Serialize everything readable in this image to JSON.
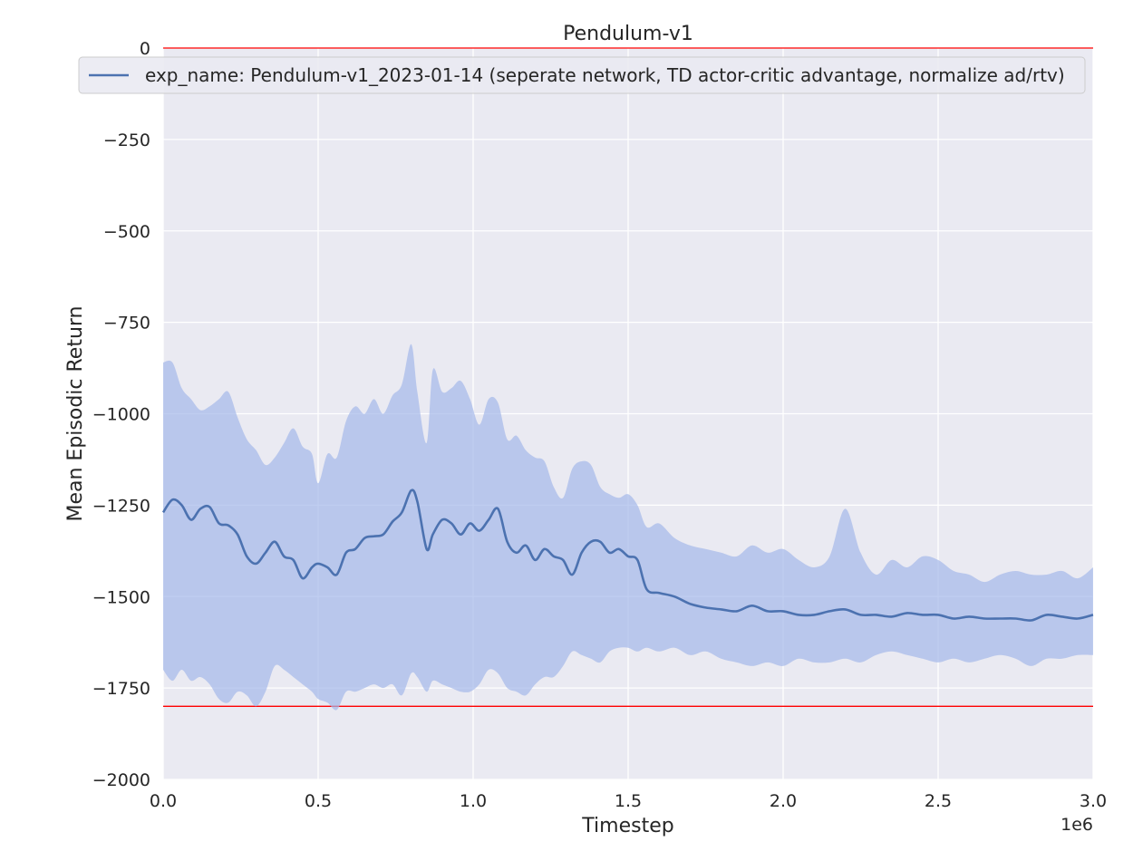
{
  "chart_data": {
    "type": "line",
    "title": "Pendulum-v1",
    "xlabel": "Timestep",
    "ylabel": "Mean Episodic Return",
    "x_offset_label": "1e6",
    "xlim": [
      0,
      3000000
    ],
    "ylim": [
      -2000,
      0
    ],
    "x_ticks": [
      0,
      500000,
      1000000,
      1500000,
      2000000,
      2500000,
      3000000
    ],
    "x_tick_labels": [
      "0.0",
      "0.5",
      "1.0",
      "1.5",
      "2.0",
      "2.5",
      "3.0"
    ],
    "y_ticks": [
      0,
      -250,
      -500,
      -750,
      -1000,
      -1250,
      -1500,
      -1750,
      -2000
    ],
    "y_tick_labels": [
      "0",
      "−250",
      "−500",
      "−750",
      "−1000",
      "−1250",
      "−1500",
      "−1750",
      "−2000"
    ],
    "grid": true,
    "legend_position": "top-center",
    "colors": {
      "background": "#eaeaf2",
      "grid": "#ffffff",
      "line": "#4c72b0",
      "band": "#a4b8ea",
      "reference": "#ff0000"
    },
    "reference_lines": [
      0,
      -1800
    ],
    "series": [
      {
        "name": "exp_name: Pendulum-v1_2023-01-14 (seperate network, TD actor-critic advantage, normalize ad/rtv)",
        "x": [
          0,
          30000,
          60000,
          90000,
          120000,
          150000,
          180000,
          210000,
          240000,
          270000,
          300000,
          330000,
          360000,
          390000,
          420000,
          450000,
          480000,
          500000,
          530000,
          560000,
          590000,
          620000,
          650000,
          680000,
          710000,
          740000,
          770000,
          800000,
          820000,
          850000,
          870000,
          900000,
          930000,
          960000,
          990000,
          1020000,
          1050000,
          1080000,
          1110000,
          1140000,
          1170000,
          1200000,
          1230000,
          1260000,
          1290000,
          1320000,
          1350000,
          1380000,
          1410000,
          1440000,
          1470000,
          1500000,
          1530000,
          1560000,
          1600000,
          1650000,
          1700000,
          1750000,
          1800000,
          1850000,
          1900000,
          1950000,
          2000000,
          2050000,
          2100000,
          2150000,
          2200000,
          2250000,
          2300000,
          2350000,
          2400000,
          2450000,
          2500000,
          2550000,
          2600000,
          2650000,
          2700000,
          2750000,
          2800000,
          2850000,
          2900000,
          2950000,
          3000000
        ],
        "mean": [
          -1270,
          -1235,
          -1250,
          -1290,
          -1260,
          -1255,
          -1300,
          -1305,
          -1330,
          -1390,
          -1410,
          -1380,
          -1350,
          -1390,
          -1400,
          -1450,
          -1420,
          -1410,
          -1420,
          -1440,
          -1380,
          -1370,
          -1340,
          -1335,
          -1330,
          -1295,
          -1270,
          -1210,
          -1240,
          -1370,
          -1330,
          -1290,
          -1300,
          -1330,
          -1300,
          -1320,
          -1290,
          -1260,
          -1350,
          -1380,
          -1360,
          -1400,
          -1370,
          -1390,
          -1400,
          -1440,
          -1380,
          -1350,
          -1350,
          -1380,
          -1370,
          -1390,
          -1400,
          -1480,
          -1490,
          -1500,
          -1520,
          -1530,
          -1535,
          -1540,
          -1525,
          -1540,
          -1540,
          -1550,
          -1550,
          -1540,
          -1535,
          -1550,
          -1550,
          -1555,
          -1545,
          -1550,
          -1550,
          -1560,
          -1555,
          -1560,
          -1560,
          -1560,
          -1565,
          -1550,
          -1555,
          -1560,
          -1550
        ],
        "upper": [
          -860,
          -860,
          -930,
          -960,
          -990,
          -980,
          -960,
          -940,
          -1010,
          -1070,
          -1100,
          -1140,
          -1120,
          -1080,
          -1040,
          -1090,
          -1110,
          -1190,
          -1110,
          -1120,
          -1020,
          -980,
          -1000,
          -960,
          -1000,
          -950,
          -920,
          -810,
          -940,
          -1080,
          -880,
          -940,
          -930,
          -910,
          -960,
          -1030,
          -960,
          -970,
          -1070,
          -1060,
          -1100,
          -1120,
          -1130,
          -1200,
          -1230,
          -1150,
          -1130,
          -1140,
          -1200,
          -1220,
          -1230,
          -1220,
          -1250,
          -1310,
          -1300,
          -1340,
          -1360,
          -1370,
          -1380,
          -1390,
          -1360,
          -1380,
          -1370,
          -1400,
          -1420,
          -1390,
          -1260,
          -1380,
          -1440,
          -1400,
          -1420,
          -1390,
          -1400,
          -1430,
          -1440,
          -1460,
          -1440,
          -1430,
          -1440,
          -1440,
          -1430,
          -1450,
          -1420
        ],
        "lower": [
          -1700,
          -1730,
          -1700,
          -1730,
          -1720,
          -1740,
          -1780,
          -1790,
          -1760,
          -1770,
          -1800,
          -1760,
          -1690,
          -1700,
          -1720,
          -1740,
          -1760,
          -1780,
          -1790,
          -1810,
          -1760,
          -1760,
          -1750,
          -1740,
          -1750,
          -1740,
          -1770,
          -1710,
          -1720,
          -1760,
          -1730,
          -1740,
          -1750,
          -1760,
          -1760,
          -1740,
          -1700,
          -1710,
          -1750,
          -1760,
          -1770,
          -1740,
          -1720,
          -1720,
          -1690,
          -1650,
          -1660,
          -1670,
          -1680,
          -1650,
          -1640,
          -1640,
          -1650,
          -1640,
          -1650,
          -1640,
          -1660,
          -1650,
          -1670,
          -1680,
          -1690,
          -1680,
          -1690,
          -1670,
          -1680,
          -1680,
          -1670,
          -1680,
          -1660,
          -1650,
          -1660,
          -1670,
          -1680,
          -1670,
          -1680,
          -1670,
          -1660,
          -1670,
          -1690,
          -1670,
          -1670,
          -1660,
          -1660
        ]
      }
    ]
  }
}
